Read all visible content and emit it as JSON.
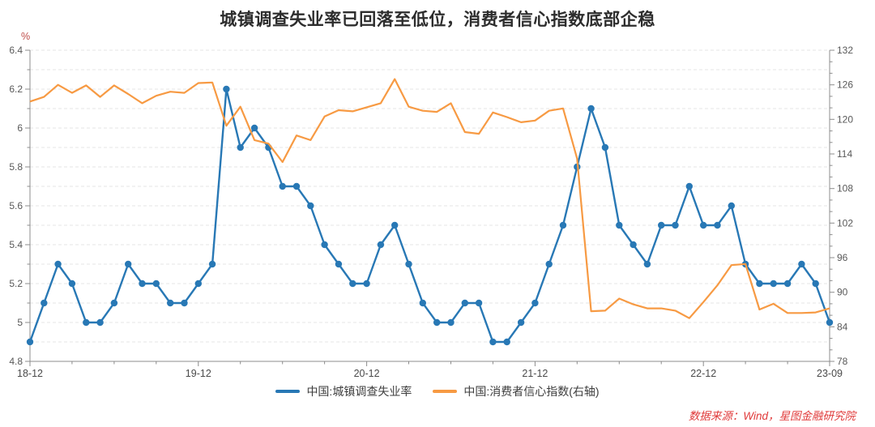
{
  "title": "城镇调查失业率已回落至低位，消费者信心指数底部企稳",
  "unit_label": "%",
  "source_note": "数据来源：Wind，星图金融研究院",
  "colors": {
    "unemployment_line": "#2878B5",
    "cci_line": "#F79A43",
    "source_text": "#E03A3A",
    "unit_text": "#BE4B48",
    "grid": "#E4E4E4",
    "axis": "#8C8C8C",
    "tick_text": "#595959",
    "xtick_text": "#4A4A4A",
    "title_text": "#2D2D2D"
  },
  "legend": [
    {
      "label": "中国:城镇调查失业率",
      "color": "#2878B5"
    },
    {
      "label": "中国:消费者信心指数(右轴)",
      "color": "#F79A43"
    }
  ],
  "chart_data": {
    "type": "line",
    "x": [
      "18-12",
      "19-01",
      "19-02",
      "19-03",
      "19-04",
      "19-05",
      "19-06",
      "19-07",
      "19-08",
      "19-09",
      "19-10",
      "19-11",
      "19-12",
      "20-01",
      "20-02",
      "20-03",
      "20-04",
      "20-05",
      "20-06",
      "20-07",
      "20-08",
      "20-09",
      "20-10",
      "20-11",
      "20-12",
      "21-01",
      "21-02",
      "21-03",
      "21-04",
      "21-05",
      "21-06",
      "21-07",
      "21-08",
      "21-09",
      "21-10",
      "21-11",
      "21-12",
      "22-01",
      "22-02",
      "22-03",
      "22-04",
      "22-05",
      "22-06",
      "22-07",
      "22-08",
      "22-09",
      "22-10",
      "22-11",
      "22-12",
      "23-01",
      "23-02",
      "23-03",
      "23-04",
      "23-05",
      "23-06",
      "23-07",
      "23-08",
      "23-09"
    ],
    "series": [
      {
        "name": "中国:城镇调查失业率",
        "axis": "left",
        "color": "#2878B5",
        "marker": "circle",
        "values": [
          4.9,
          5.1,
          5.3,
          5.2,
          5.0,
          5.0,
          5.1,
          5.3,
          5.2,
          5.2,
          5.1,
          5.1,
          5.2,
          5.3,
          6.2,
          5.9,
          6.0,
          5.9,
          5.7,
          5.7,
          5.6,
          5.4,
          5.3,
          5.2,
          5.2,
          5.4,
          5.5,
          5.3,
          5.1,
          5.0,
          5.0,
          5.1,
          5.1,
          4.9,
          4.9,
          5.0,
          5.1,
          5.3,
          5.5,
          5.8,
          6.1,
          5.9,
          5.5,
          5.4,
          5.3,
          5.5,
          5.5,
          5.7,
          5.5,
          5.5,
          5.6,
          5.3,
          5.2,
          5.2,
          5.2,
          5.3,
          5.2,
          5.0
        ]
      },
      {
        "name": "中国:消费者信心指数(右轴)",
        "axis": "right",
        "color": "#F79A43",
        "marker": "none",
        "values": [
          123.1,
          123.9,
          126.0,
          124.6,
          125.9,
          123.9,
          125.9,
          124.4,
          122.8,
          124.1,
          124.8,
          124.6,
          126.3,
          126.4,
          118.9,
          122.2,
          116.4,
          115.8,
          112.6,
          117.2,
          116.4,
          120.5,
          121.6,
          121.4,
          122.1,
          122.8,
          127.0,
          122.2,
          121.5,
          121.3,
          122.8,
          117.8,
          117.5,
          121.2,
          120.4,
          119.5,
          119.8,
          121.5,
          121.9,
          113.2,
          86.7,
          86.8,
          88.9,
          87.9,
          87.2,
          87.2,
          86.8,
          85.5,
          88.3,
          91.2,
          94.7,
          94.9,
          87.0,
          88.0,
          86.4,
          86.4,
          86.5,
          87.2
        ]
      }
    ],
    "left_axis": {
      "min": 4.8,
      "max": 6.4,
      "tick_step": 0.2,
      "minor_step": 0.1,
      "tick_labels": [
        "6.4",
        "6.2",
        "6",
        "5.8",
        "5.6",
        "5.4",
        "5.2",
        "5",
        "4.8"
      ],
      "unit": "%"
    },
    "right_axis": {
      "min": 78,
      "max": 132,
      "tick_step": 6,
      "minor_step": 2,
      "tick_labels": [
        "132",
        "126",
        "120",
        "114",
        "108",
        "102",
        "96",
        "90",
        "84",
        "78"
      ]
    },
    "x_major_ticks": [
      {
        "index": 0,
        "label": "18-12"
      },
      {
        "index": 12,
        "label": "19-12"
      },
      {
        "index": 24,
        "label": "20-12"
      },
      {
        "index": 36,
        "label": "21-12"
      },
      {
        "index": 48,
        "label": "22-12"
      },
      {
        "index": 57,
        "label": "23-09"
      }
    ],
    "x_minor_every": 3,
    "grid": "horizontal-dashed",
    "legend_position": "bottom-center"
  }
}
